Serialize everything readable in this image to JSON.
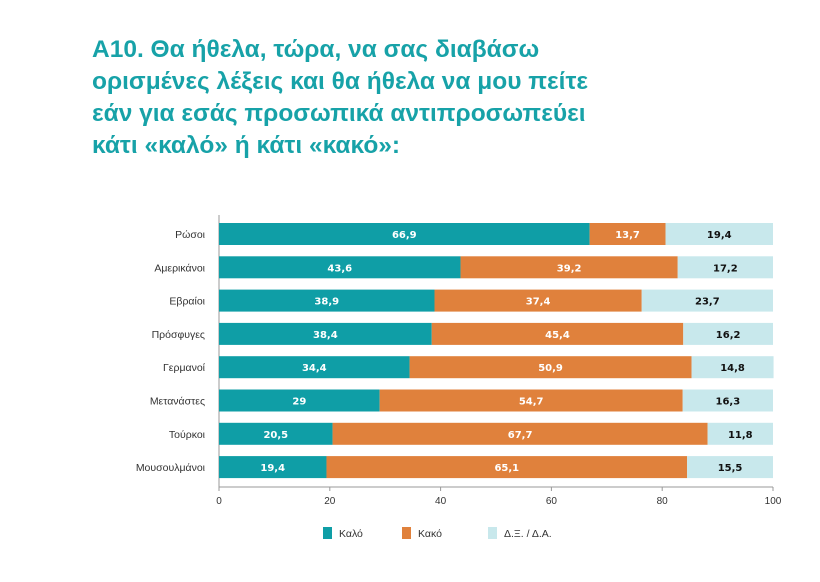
{
  "chart_data": {
    "type": "bar",
    "orientation": "horizontal",
    "stacked": true,
    "title_lines": [
      "Α10. Θα ήθελα, τώρα, να σας διαβάσω",
      "ορισμένες λέξεις και θα ήθελα να μου πείτε",
      "εάν για εσάς προσωπικά αντιπροσωπεύει",
      "κάτι «καλό» ή κάτι «κακό»:"
    ],
    "categories": [
      "Ρώσοι",
      "Αμερικάνοι",
      "Εβραίοι",
      "Πρόσφυγες",
      "Γερμανοί",
      "Μετανάστες",
      "Τούρκοι",
      "Μουσουλμάνοι"
    ],
    "series": [
      {
        "name": "Καλό",
        "color": "#0f9ea6",
        "label_color": "#ffffff",
        "values": [
          66.9,
          43.6,
          38.9,
          38.4,
          34.4,
          29,
          20.5,
          19.4
        ],
        "labels": [
          "66,9",
          "43,6",
          "38,9",
          "38,4",
          "34,4",
          "29",
          "20,5",
          "19,4"
        ]
      },
      {
        "name": "Κακό",
        "color": "#e0813c",
        "label_color": "#ffffff",
        "values": [
          13.7,
          39.2,
          37.4,
          45.4,
          50.9,
          54.7,
          67.7,
          65.1
        ],
        "labels": [
          "13,7",
          "39,2",
          "37,4",
          "45,4",
          "50,9",
          "54,7",
          "67,7",
          "65,1"
        ]
      },
      {
        "name": "Δ.Ξ. / Δ.Α.",
        "color": "#c8e8ec",
        "label_color": "#111111",
        "values": [
          19.4,
          17.2,
          23.7,
          16.2,
          14.8,
          16.3,
          11.8,
          15.5
        ],
        "labels": [
          "19,4",
          "17,2",
          "23,7",
          "16,2",
          "14,8",
          "16,3",
          "11,8",
          "15,5"
        ]
      }
    ],
    "xlim": [
      0,
      100
    ],
    "xticks": [
      "0",
      "20",
      "40",
      "60",
      "80",
      "100"
    ],
    "xtick_values": [
      0,
      20,
      40,
      60,
      80,
      100
    ],
    "grid": false,
    "legend_placement": "bottom"
  }
}
